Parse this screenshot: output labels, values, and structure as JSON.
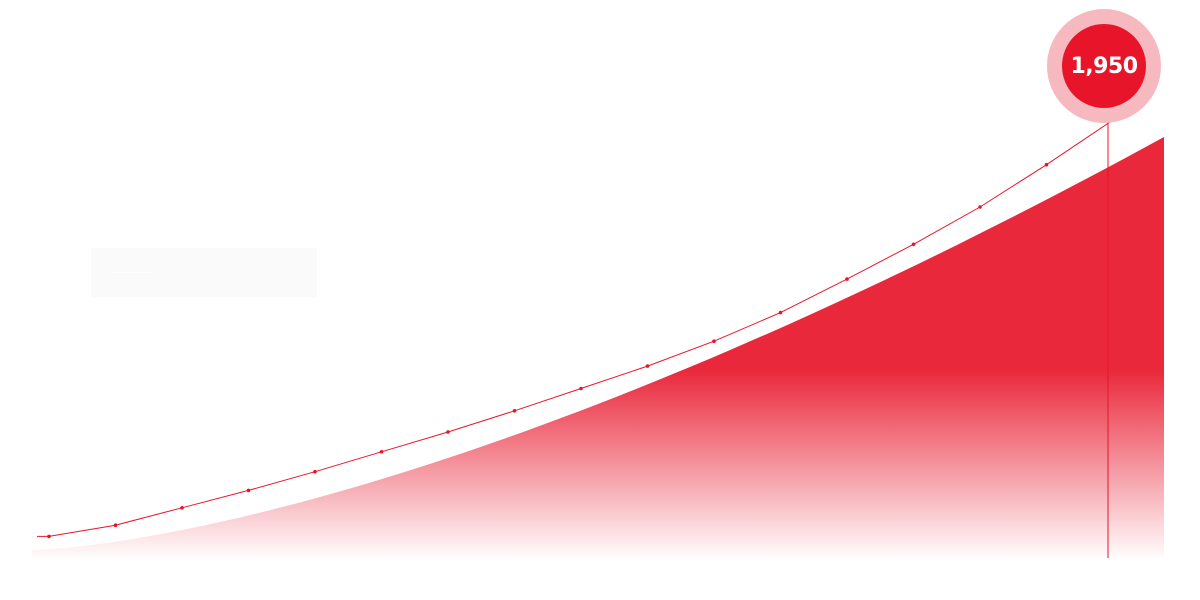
{
  "chart_data": {
    "type": "line",
    "legend": {
      "label": "",
      "placement": "top-left"
    },
    "series": [
      {
        "color": "#e8152a",
        "values": [
          150,
          240,
          380,
          520,
          670,
          830,
          990,
          1160,
          1340,
          1520,
          1720,
          1950,
          2220,
          2500,
          2800,
          3140,
          3500
        ]
      }
    ],
    "highlight": {
      "value_label": "1,950",
      "color": "#e8152a",
      "halo_color": "#f7b9c0"
    },
    "area": {
      "color": "#e8152a"
    },
    "grid": false,
    "axes_visible": false
  }
}
